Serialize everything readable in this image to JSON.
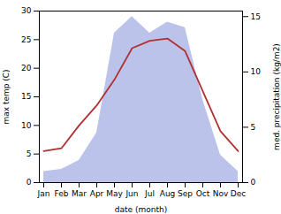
{
  "chart_data": {
    "type": "line",
    "xlabel": "date (month)",
    "ylabel": "max temp (C)",
    "y2label": "med. precipitation (kg/m2)",
    "categories": [
      "Jan",
      "Feb",
      "Mar",
      "Apr",
      "May",
      "Jun",
      "Jul",
      "Aug",
      "Sep",
      "Oct",
      "Nov",
      "Dec"
    ],
    "series": [
      {
        "type": "area",
        "axis": "y2",
        "color": "#b0b8e8",
        "values": [
          1.0,
          1.2,
          2.0,
          4.5,
          13.5,
          15.0,
          13.5,
          14.5,
          14.0,
          7.5,
          2.5,
          1.0
        ]
      },
      {
        "type": "line",
        "color": "#b03030",
        "values": [
          5.5,
          6.0,
          10.0,
          13.5,
          18.0,
          23.5,
          24.8,
          25.2,
          23.0,
          16.0,
          9.0,
          5.5
        ]
      }
    ],
    "ylim": [
      0,
      30
    ],
    "yticks": [
      0,
      5,
      10,
      15,
      20,
      25,
      30
    ],
    "y2lim": [
      0,
      15.5
    ],
    "y2ticks": [
      0,
      5,
      10,
      15
    ],
    "grid": false
  }
}
